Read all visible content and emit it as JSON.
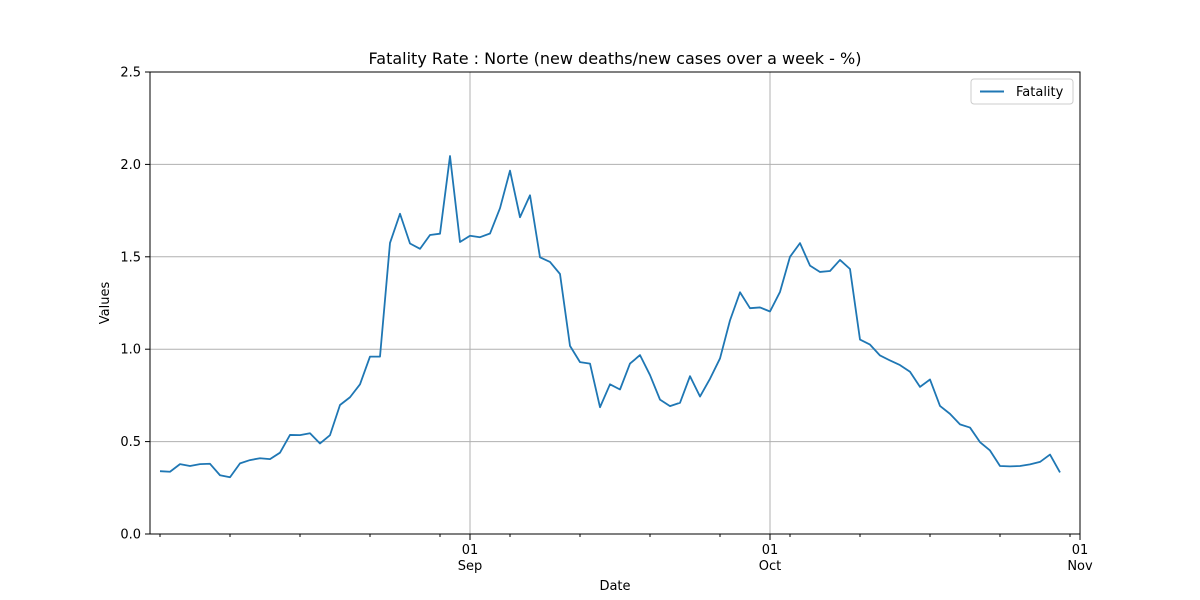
{
  "chart_data": {
    "type": "line",
    "title": "Fatality Rate : Norte  (new deaths/new cases over a week - %)",
    "xlabel": "Date",
    "ylabel": "Values",
    "ylim": [
      0,
      2.5
    ],
    "xlim": [
      "2021-07-31",
      "2021-11-01"
    ],
    "y_ticks": [
      "0.0",
      "0.5",
      "1.0",
      "1.5",
      "2.0",
      "2.5"
    ],
    "x_major_ticks": [
      {
        "date": "2021-09-01",
        "day": "01",
        "month": "Sep"
      },
      {
        "date": "2021-10-01",
        "day": "01",
        "month": "Oct"
      },
      {
        "date": "2021-11-01",
        "day": "01",
        "month": "Nov"
      }
    ],
    "grid": true,
    "legend_position": "top-right",
    "x_start": "2021-08-01",
    "x_step": "1 day",
    "series": [
      {
        "name": "Fatality",
        "color": "#1f77b4",
        "values": [
          0.34,
          0.337,
          0.378,
          0.368,
          0.378,
          0.38,
          0.318,
          0.307,
          0.382,
          0.4,
          0.41,
          0.405,
          0.44,
          0.536,
          0.535,
          0.545,
          0.49,
          0.535,
          0.698,
          0.74,
          0.81,
          0.96,
          0.96,
          1.575,
          1.733,
          1.572,
          1.543,
          1.618,
          1.625,
          2.045,
          1.58,
          1.614,
          1.606,
          1.626,
          1.763,
          1.966,
          1.714,
          1.833,
          1.497,
          1.472,
          1.407,
          1.018,
          0.93,
          0.922,
          0.686,
          0.81,
          0.782,
          0.922,
          0.968,
          0.86,
          0.727,
          0.692,
          0.71,
          0.854,
          0.744,
          0.84,
          0.95,
          1.156,
          1.308,
          1.222,
          1.226,
          1.204,
          1.31,
          1.5,
          1.574,
          1.452,
          1.418,
          1.423,
          1.483,
          1.434,
          1.052,
          1.025,
          0.966,
          0.939,
          0.914,
          0.878,
          0.796,
          0.836,
          0.693,
          0.65,
          0.593,
          0.576,
          0.497,
          0.452,
          0.368,
          0.366,
          0.368,
          0.377,
          0.39,
          0.43,
          0.333
        ]
      }
    ]
  }
}
